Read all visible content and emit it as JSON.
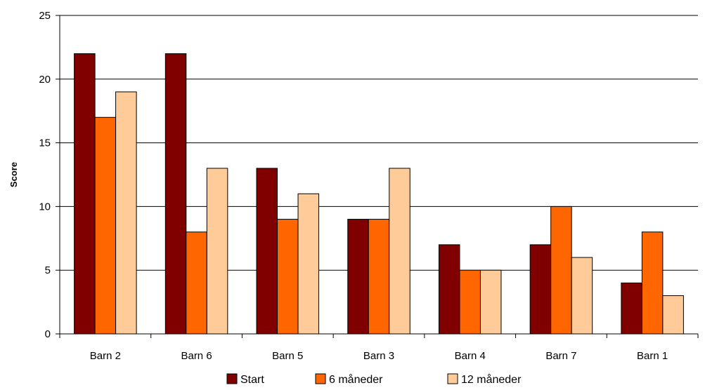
{
  "chart_data": {
    "type": "bar",
    "title": "",
    "xlabel": "",
    "ylabel": "Score",
    "ylim": [
      0,
      25
    ],
    "yticks": [
      0,
      5,
      10,
      15,
      20,
      25
    ],
    "grid": true,
    "legend_position": "bottom",
    "categories": [
      "Barn 2",
      "Barn 6",
      "Barn 5",
      "Barn 3",
      "Barn 4",
      "Barn 7",
      "Barn 1"
    ],
    "series": [
      {
        "name": "Start",
        "color": "#800000",
        "values": [
          22,
          22,
          13,
          9,
          7,
          7,
          4
        ]
      },
      {
        "name": "6 måneder",
        "color": "#FF6600",
        "values": [
          17,
          8,
          9,
          9,
          5,
          10,
          8
        ]
      },
      {
        "name": "12 måneder",
        "color": "#FFCC99",
        "values": [
          19,
          13,
          11,
          13,
          5,
          6,
          3
        ]
      }
    ]
  }
}
